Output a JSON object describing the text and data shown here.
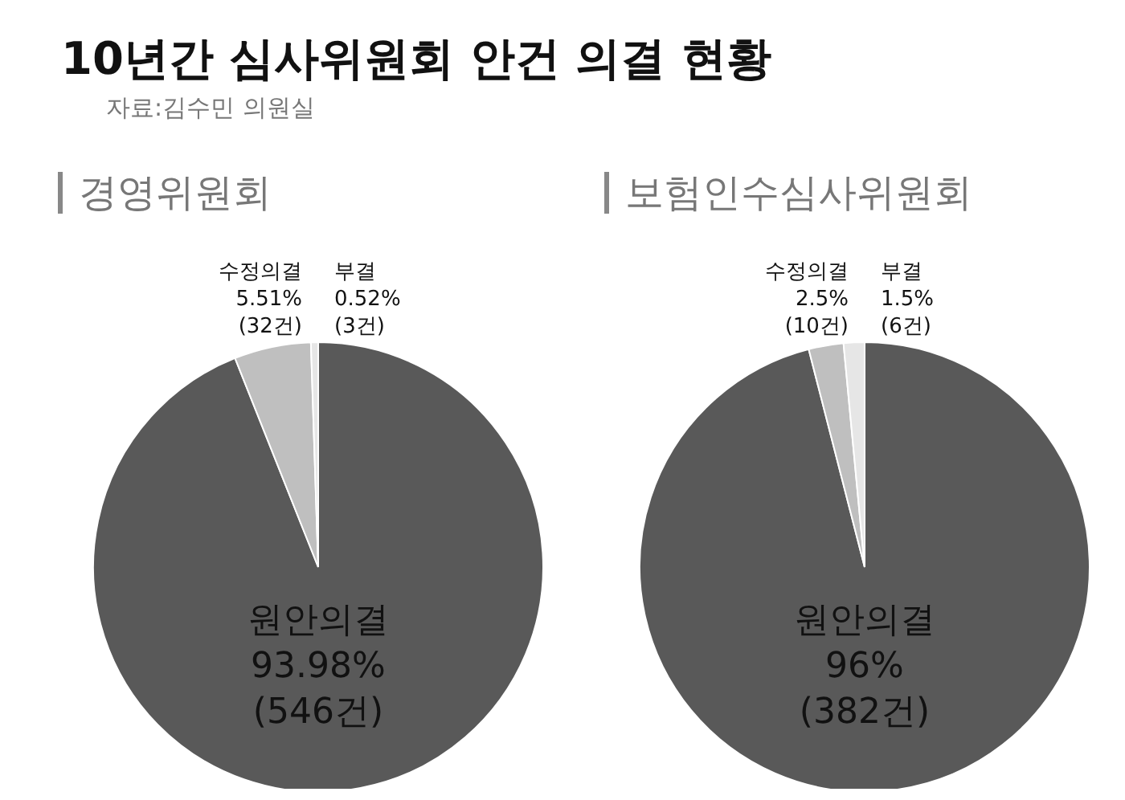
{
  "chart_data": [
    {
      "type": "pie",
      "title": "10년간 심사위원회 안건 의결 현황",
      "subtitle": "경영위원회",
      "annotations": [
        "자료:김수민 의원실"
      ],
      "categories": [
        "원안의결",
        "수정의결",
        "부결"
      ],
      "values": [
        93.98,
        5.51,
        0.52
      ],
      "colors": [
        "#595959",
        "#bfbfbf",
        "#e6e6e6"
      ],
      "value_labels": [
        "93.98%\n(546건)",
        "5.51%\n(32건)",
        "0.52%\n(3건)"
      ]
    },
    {
      "type": "pie",
      "subtitle": "보험인수심사위원회",
      "categories": [
        "원안의결",
        "수정의결",
        "부결"
      ],
      "values": [
        96,
        2.5,
        1.5
      ],
      "colors": [
        "#595959",
        "#bfbfbf",
        "#e6e6e6"
      ],
      "value_labels": [
        "96%\n(382건)",
        "2.5%\n(10건)",
        "1.5%\n(6건)"
      ]
    }
  ]
}
